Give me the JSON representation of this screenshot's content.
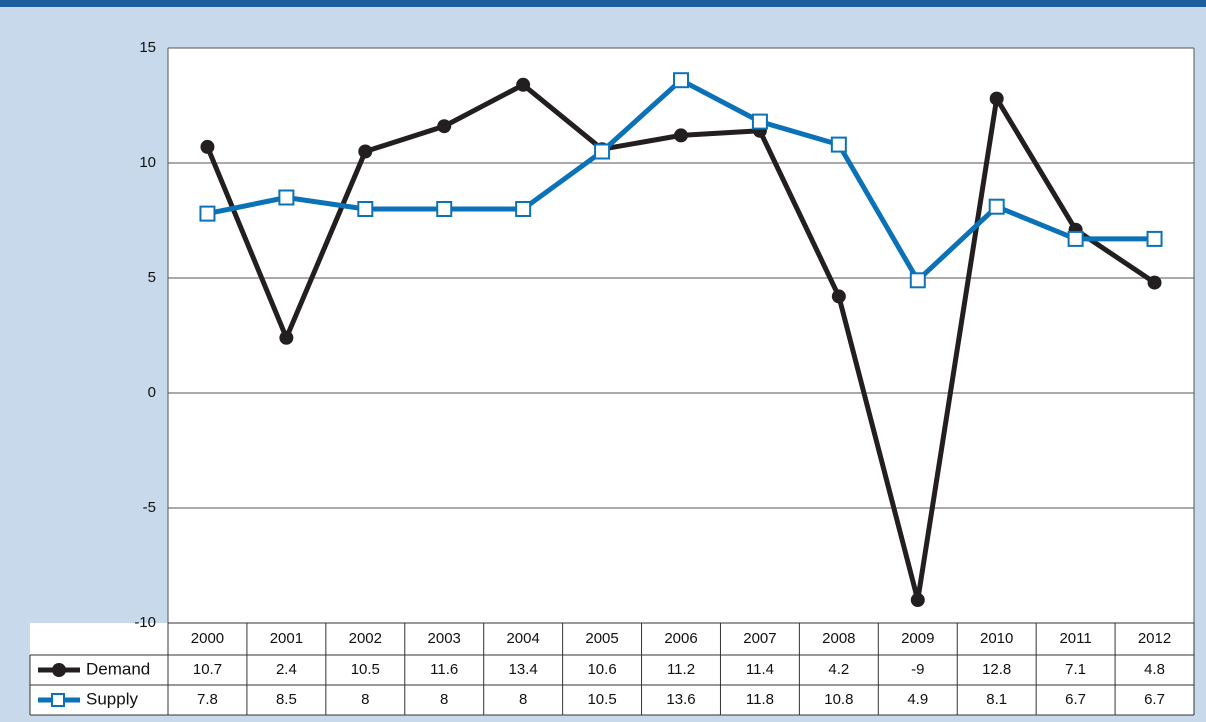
{
  "chart_data": {
    "type": "line",
    "categories": [
      "2000",
      "2001",
      "2002",
      "2003",
      "2004",
      "2005",
      "2006",
      "2007",
      "2008",
      "2009",
      "2010",
      "2011",
      "2012"
    ],
    "series": [
      {
        "name": "Demand",
        "color": "#231f20",
        "marker": "circle",
        "values": [
          10.7,
          2.4,
          10.5,
          11.6,
          13.4,
          10.6,
          11.2,
          11.4,
          4.2,
          -9,
          12.8,
          7.1,
          4.8
        ]
      },
      {
        "name": "Supply",
        "color": "#0b72b8",
        "marker": "square",
        "values": [
          7.8,
          8.5,
          8,
          8,
          8,
          10.5,
          13.6,
          11.8,
          10.8,
          4.9,
          8.1,
          6.7,
          6.7
        ]
      }
    ],
    "ylim": [
      -10,
      15
    ],
    "yticks": [
      -10,
      -5,
      0,
      5,
      10,
      15
    ],
    "grid": true,
    "data_table": true
  }
}
